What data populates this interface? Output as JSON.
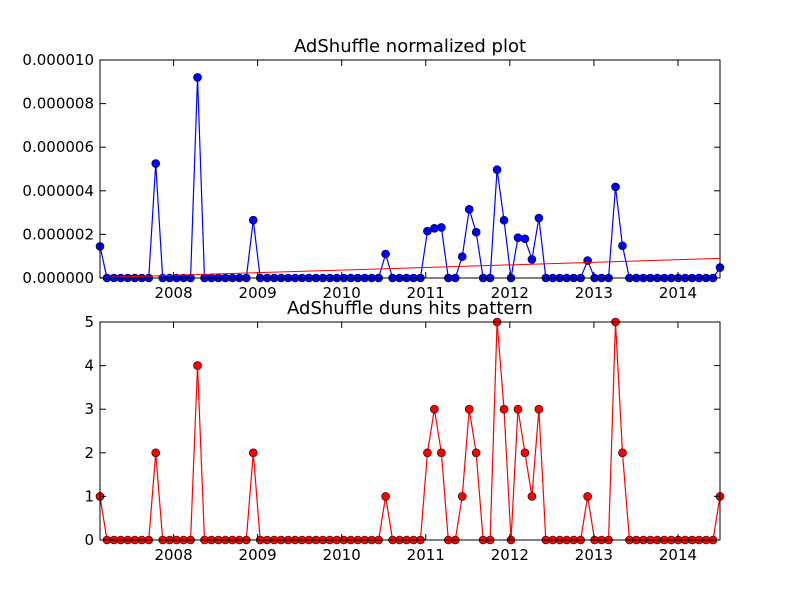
{
  "chart_data": [
    {
      "type": "line",
      "title": "AdShuffle normalized plot",
      "xlabel": "",
      "ylabel": "",
      "xlim": [
        2007.125,
        2014.5
      ],
      "ylim": [
        0,
        1e-05
      ],
      "xticks": [
        "2008",
        "2009",
        "2010",
        "2011",
        "2012",
        "2013",
        "2014"
      ],
      "yticks": [
        "0.000000",
        "0.000002",
        "0.000004",
        "0.000006",
        "0.000008",
        "0.000010"
      ],
      "grid": false,
      "series": [
        {
          "color": "#0000ff",
          "marker": "circle",
          "values": [
            1.45e-06,
            0,
            0,
            0,
            0,
            0,
            0,
            0,
            5.25e-06,
            0,
            0,
            0,
            0,
            0,
            9.2e-06,
            0,
            0,
            0,
            0,
            0,
            0,
            0,
            2.65e-06,
            0,
            0,
            0,
            0,
            0,
            0,
            0,
            0,
            0,
            0,
            0,
            0,
            0,
            0,
            0,
            0,
            0,
            0,
            1.1e-06,
            0,
            0,
            0,
            0,
            0,
            2.15e-06,
            2.28e-06,
            2.32e-06,
            0,
            0,
            9.8e-07,
            3.15e-06,
            2.1e-06,
            0,
            0,
            4.97e-06,
            2.65e-06,
            0,
            1.85e-06,
            1.8e-06,
            8.5e-07,
            2.75e-06,
            0,
            0,
            0,
            0,
            0,
            0,
            8e-07,
            0,
            0,
            0,
            4.18e-06,
            1.48e-06,
            0,
            0,
            0,
            0,
            0,
            0,
            0,
            0,
            0,
            0,
            0,
            0,
            0,
            4.8e-07
          ]
        },
        {
          "type": "trend",
          "color": "#ff0000",
          "start": [
            2007.125,
            2e-08
          ],
          "end": [
            2014.5,
            9e-07
          ]
        }
      ]
    },
    {
      "type": "line",
      "title": "AdShuffle duns hits pattern",
      "xlabel": "",
      "ylabel": "",
      "xlim": [
        2007.125,
        2014.5
      ],
      "ylim": [
        0,
        5
      ],
      "xticks": [
        "2008",
        "2009",
        "2010",
        "2011",
        "2012",
        "2013",
        "2014"
      ],
      "yticks": [
        "0",
        "1",
        "2",
        "3",
        "4",
        "5"
      ],
      "grid": false,
      "series": [
        {
          "color": "#ff0000",
          "marker": "circle",
          "values": [
            1,
            0,
            0,
            0,
            0,
            0,
            0,
            0,
            2,
            0,
            0,
            0,
            0,
            0,
            4,
            0,
            0,
            0,
            0,
            0,
            0,
            0,
            2,
            0,
            0,
            0,
            0,
            0,
            0,
            0,
            0,
            0,
            0,
            0,
            0,
            0,
            0,
            0,
            0,
            0,
            0,
            1,
            0,
            0,
            0,
            0,
            0,
            2,
            3,
            2,
            0,
            0,
            1,
            3,
            2,
            0,
            0,
            5,
            3,
            0,
            3,
            2,
            1,
            3,
            0,
            0,
            0,
            0,
            0,
            0,
            1,
            0,
            0,
            0,
            5,
            2,
            0,
            0,
            0,
            0,
            0,
            0,
            0,
            0,
            0,
            0,
            0,
            0,
            0,
            1
          ]
        }
      ]
    }
  ]
}
